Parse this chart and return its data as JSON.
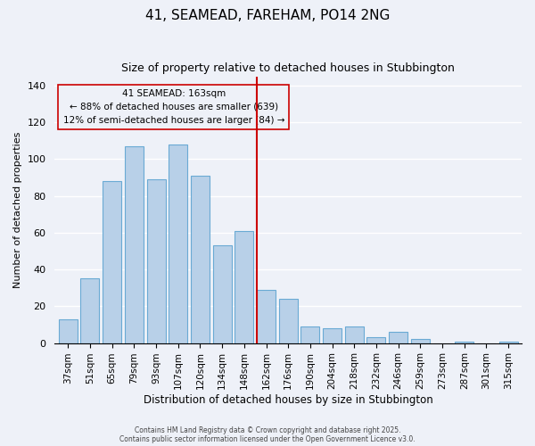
{
  "title": "41, SEAMEAD, FAREHAM, PO14 2NG",
  "subtitle": "Size of property relative to detached houses in Stubbington",
  "xlabel": "Distribution of detached houses by size in Stubbington",
  "ylabel": "Number of detached properties",
  "bar_labels": [
    "37sqm",
    "51sqm",
    "65sqm",
    "79sqm",
    "93sqm",
    "107sqm",
    "120sqm",
    "134sqm",
    "148sqm",
    "162sqm",
    "176sqm",
    "190sqm",
    "204sqm",
    "218sqm",
    "232sqm",
    "246sqm",
    "259sqm",
    "273sqm",
    "287sqm",
    "301sqm",
    "315sqm"
  ],
  "bar_values": [
    13,
    35,
    88,
    107,
    89,
    108,
    91,
    53,
    61,
    29,
    24,
    9,
    8,
    9,
    3,
    6,
    2,
    0,
    1,
    0,
    1
  ],
  "bar_color": "#b8d0e8",
  "bar_edge_color": "#6aaad4",
  "vline_x_index": 9,
  "vline_color": "#cc0000",
  "annotation_title": "41 SEAMEAD: 163sqm",
  "annotation_line1": "← 88% of detached houses are smaller (639)",
  "annotation_line2": "12% of semi-detached houses are larger (84) →",
  "annotation_box_edge_color": "#cc0000",
  "ylim": [
    0,
    145
  ],
  "footnote1": "Contains HM Land Registry data © Crown copyright and database right 2025.",
  "footnote2": "Contains public sector information licensed under the Open Government Licence v3.0.",
  "background_color": "#eef1f8",
  "grid_color": "#ffffff"
}
